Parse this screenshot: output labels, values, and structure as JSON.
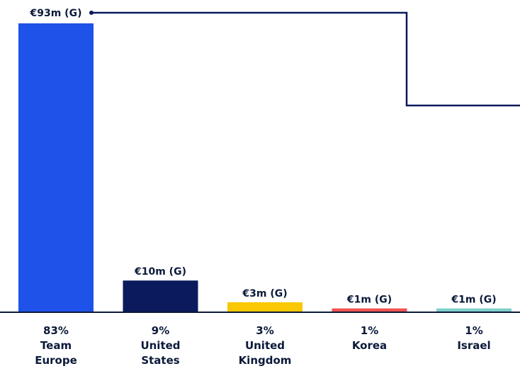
{
  "chart_data": {
    "type": "bar",
    "categories": [
      "Team Europe",
      "United States",
      "United Kingdom",
      "Korea",
      "Israel"
    ],
    "category_labels": [
      [
        "83%",
        "Team",
        "Europe"
      ],
      [
        "9%",
        "United",
        "States"
      ],
      [
        "3%",
        "United",
        "Kingdom"
      ],
      [
        "1%",
        "Korea"
      ],
      [
        "1%",
        "Israel"
      ]
    ],
    "values": [
      93,
      10,
      3,
      1,
      1
    ],
    "shares_pct": [
      83,
      9,
      3,
      1,
      1
    ],
    "value_labels": [
      "€93m (G)",
      "€10m (G)",
      "€3m (G)",
      "€1m (G)",
      "€1m (G)"
    ],
    "colors": [
      "#1f52e8",
      "#0b1a5c",
      "#f9c800",
      "#ef5350",
      "#7ecfc9"
    ],
    "ylim": [
      0,
      93
    ],
    "title": "",
    "xlabel": "",
    "ylabel": "",
    "grid": false,
    "legend": "none",
    "connector": "step line from top of largest bar label"
  },
  "style": {
    "text_color": "#0b1a3a",
    "axis_color": "#0b1a3a",
    "connector_color": "#0b1a5c"
  }
}
